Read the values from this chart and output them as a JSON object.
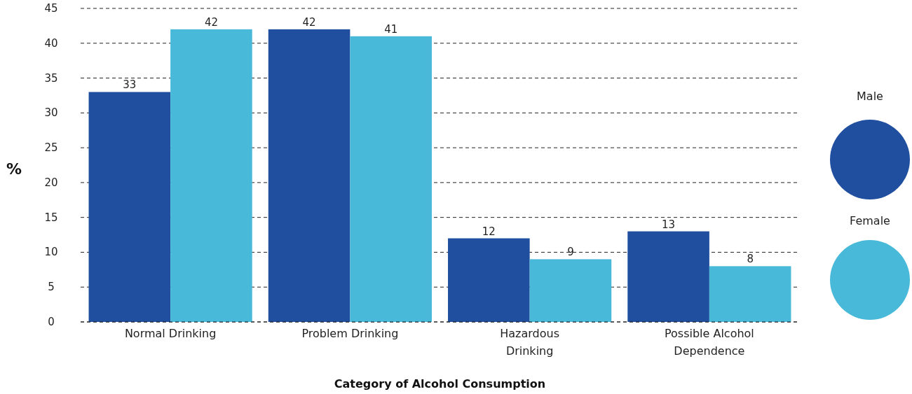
{
  "chart_data": {
    "type": "bar",
    "xlabel": "Category of Alcohol Consumption",
    "ylabel": "%",
    "categories": [
      "Normal Drinking",
      "Problem Drinking",
      "Hazardous Drinking",
      "Possible Alcohol Dependence"
    ],
    "series": [
      {
        "name": "Male",
        "color": "#1f4f9e",
        "values": [
          33,
          42,
          12,
          13
        ]
      },
      {
        "name": "Female",
        "color": "#48b9d9",
        "values": [
          42,
          41,
          9,
          8
        ]
      }
    ],
    "ylim": [
      0,
      45
    ],
    "yticks": [
      0,
      5,
      10,
      15,
      20,
      25,
      30,
      35,
      40,
      45
    ],
    "grid": "y",
    "legend": "right",
    "data_labels": true
  }
}
